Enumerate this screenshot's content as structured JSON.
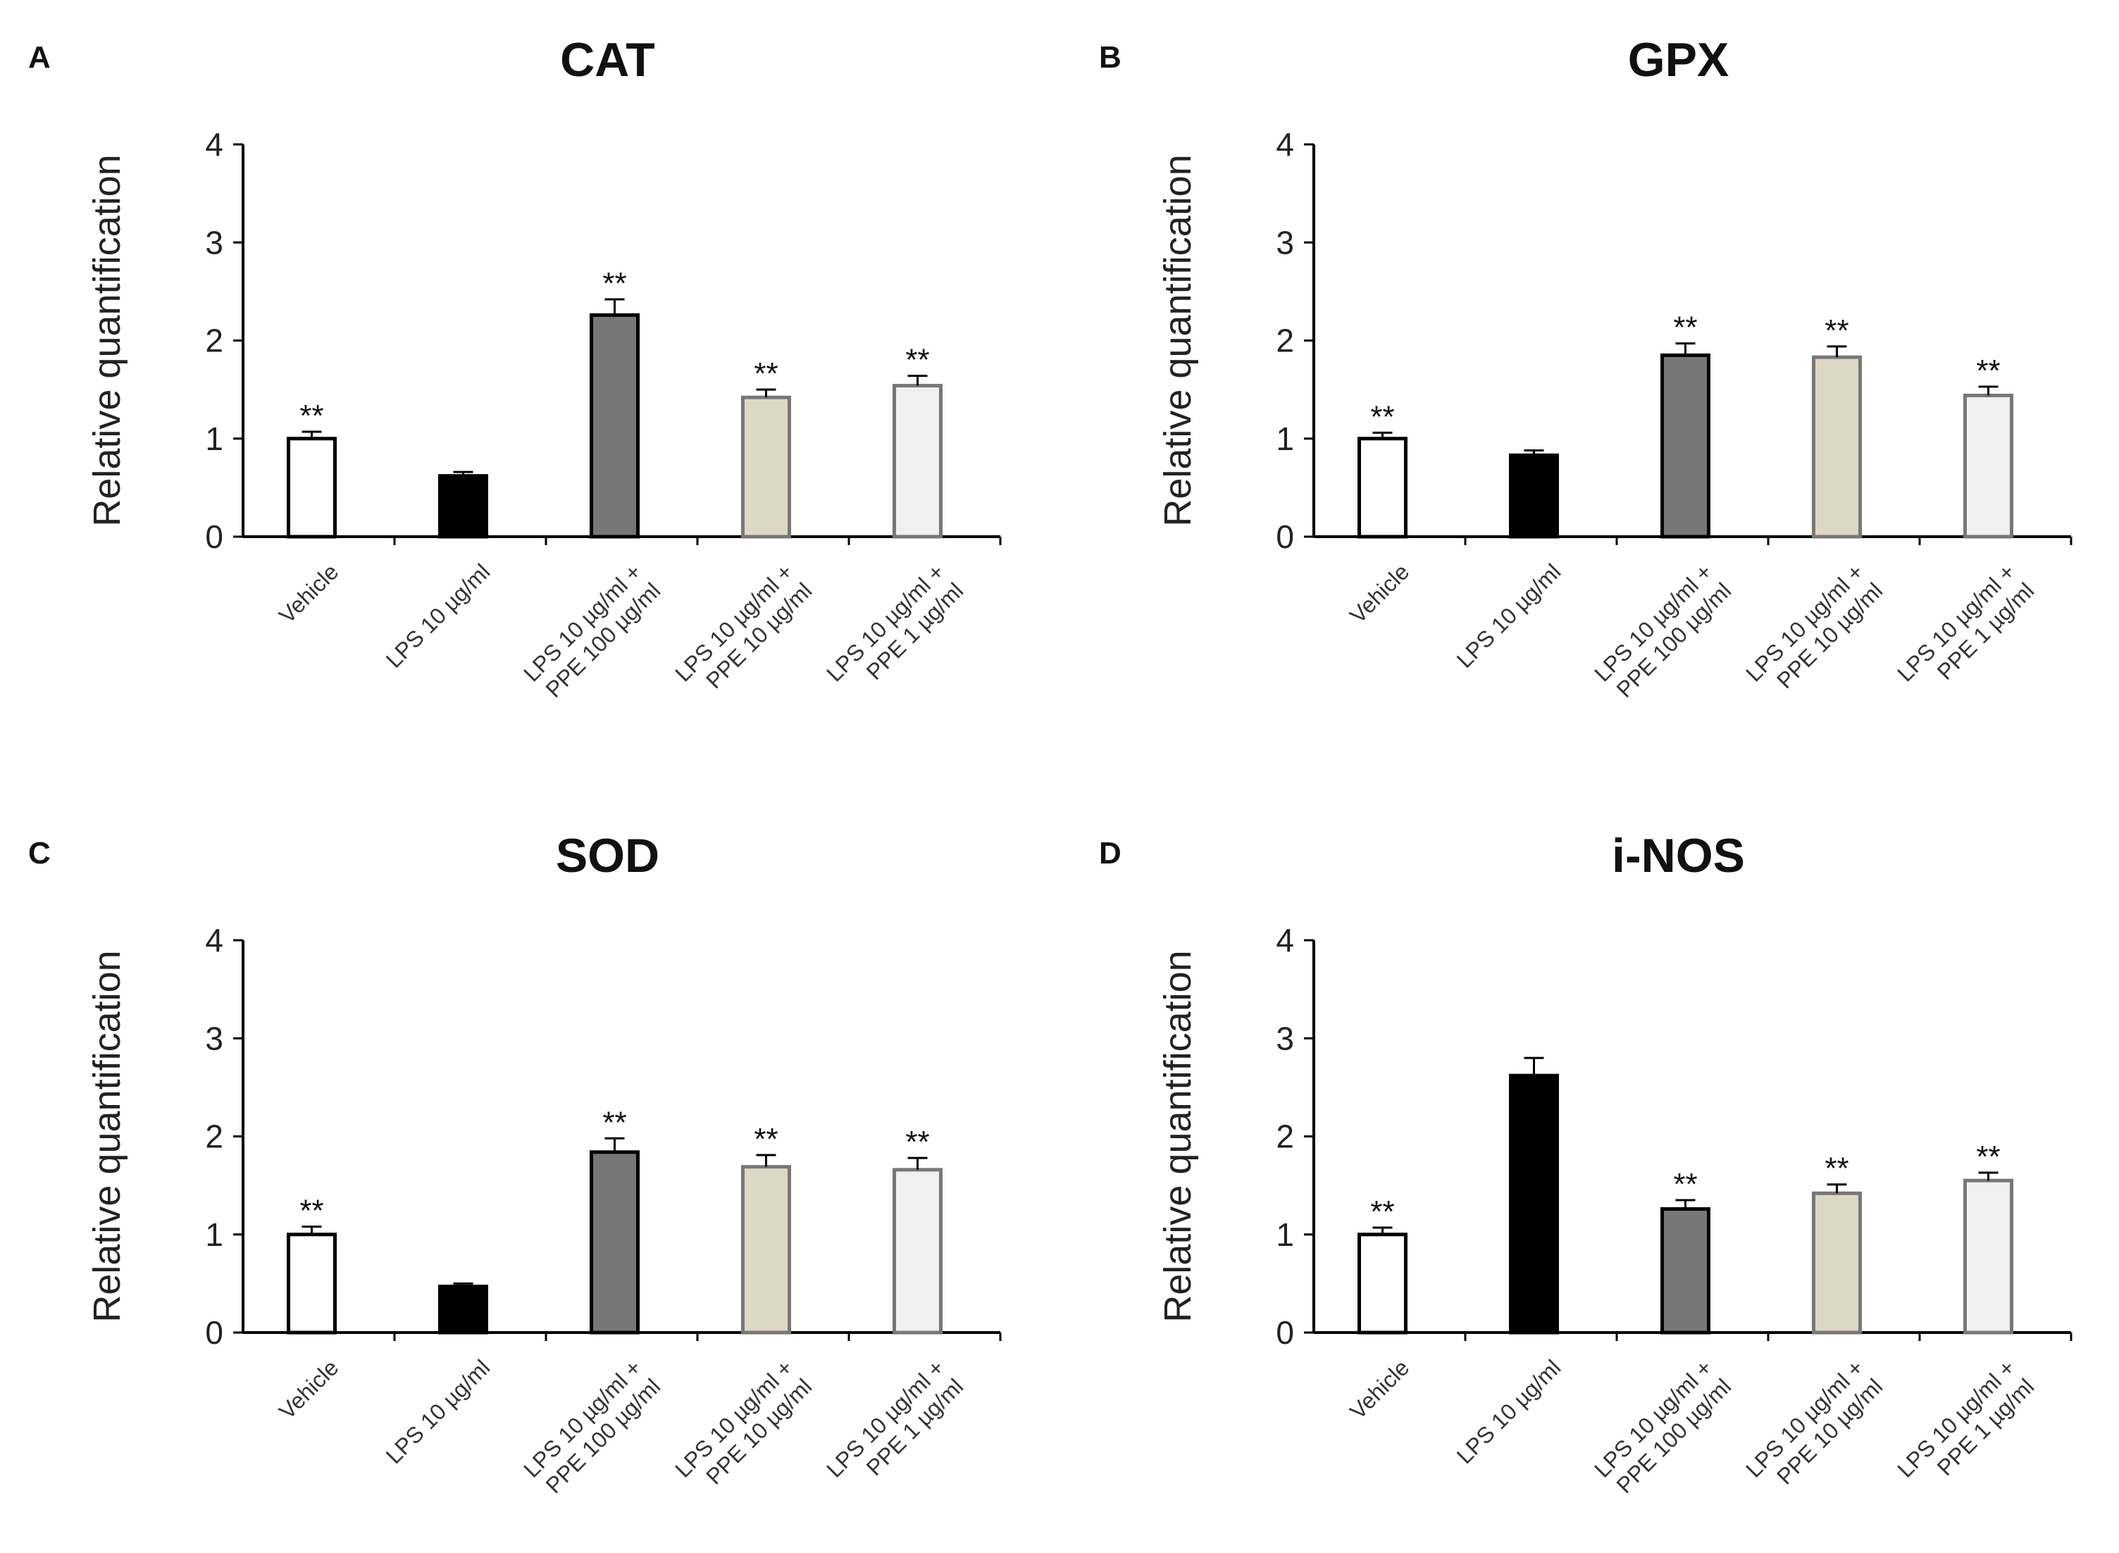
{
  "chart_data": [
    {
      "type": "bar",
      "panel": "A",
      "title": "CAT",
      "ylabel": "Relative quantification",
      "xlabel": "",
      "ylim": [
        0,
        4
      ],
      "yticks": [
        "0",
        "1",
        "2",
        "3",
        "4"
      ],
      "categories": [
        [
          "Vehicle"
        ],
        [
          "LPS 10 µg/ml"
        ],
        [
          "LPS 10 µg/ml +",
          "PPE 100 µg/ml"
        ],
        [
          "LPS 10 µg/ml +",
          "PPE 10 µg/ml"
        ],
        [
          "LPS 10 µg/ml +",
          "PPE 1 µg/ml"
        ]
      ],
      "values": [
        1.0,
        0.62,
        2.26,
        1.42,
        1.54
      ],
      "errors": [
        0.07,
        0.04,
        0.16,
        0.08,
        0.1
      ],
      "significance": [
        "**",
        "",
        "**",
        "**",
        "**"
      ]
    },
    {
      "type": "bar",
      "panel": "B",
      "title": "GPX",
      "ylabel": "Relative quantification",
      "xlabel": "",
      "ylim": [
        0,
        4
      ],
      "yticks": [
        "0",
        "1",
        "2",
        "3",
        "4"
      ],
      "categories": [
        [
          "Vehicle"
        ],
        [
          "LPS 10 µg/ml"
        ],
        [
          "LPS 10 µg/ml +",
          "PPE 100 µg/ml"
        ],
        [
          "LPS 10 µg/ml +",
          "PPE 10 µg/ml"
        ],
        [
          "LPS 10 µg/ml +",
          "PPE 1  µg/ml"
        ]
      ],
      "values": [
        1.0,
        0.83,
        1.85,
        1.83,
        1.44
      ],
      "errors": [
        0.06,
        0.05,
        0.12,
        0.11,
        0.09
      ],
      "significance": [
        "**",
        "",
        "**",
        "**",
        "**"
      ]
    },
    {
      "type": "bar",
      "panel": "C",
      "title": "SOD",
      "ylabel": "Relative quantification",
      "xlabel": "",
      "ylim": [
        0,
        4
      ],
      "yticks": [
        "0",
        "1",
        "2",
        "3",
        "4"
      ],
      "categories": [
        [
          "Vehicle"
        ],
        [
          "LPS 10 µg/ml"
        ],
        [
          "LPS 10 µg/ml +",
          "PPE 100 µg/ml"
        ],
        [
          "LPS 10 µg/ml +",
          "PPE 10 µg/ml"
        ],
        [
          "LPS 10 µg/ml +",
          "PPE 1 µg/ml"
        ]
      ],
      "values": [
        1.0,
        0.47,
        1.84,
        1.69,
        1.66
      ],
      "errors": [
        0.08,
        0.03,
        0.14,
        0.12,
        0.12
      ],
      "significance": [
        "**",
        "",
        "**",
        "**",
        "**"
      ]
    },
    {
      "type": "bar",
      "panel": "D",
      "title": "i-NOS",
      "ylabel": "Relative quantification",
      "xlabel": "",
      "ylim": [
        0,
        4
      ],
      "yticks": [
        "0",
        "1",
        "2",
        "3",
        "4"
      ],
      "categories": [
        [
          "Vehicle"
        ],
        [
          "LPS 10 µg/ml"
        ],
        [
          "LPS 10 µg/ml +",
          "PPE 100 µg/ml"
        ],
        [
          "LPS 10 µg/ml +",
          "PPE 10 µg/ml"
        ],
        [
          "LPS 10 µg/ml +",
          "PPE 1 µg/ml"
        ]
      ],
      "values": [
        1.0,
        2.62,
        1.26,
        1.42,
        1.55
      ],
      "errors": [
        0.07,
        0.18,
        0.09,
        0.09,
        0.08
      ],
      "significance": [
        "**",
        "",
        "**",
        "**",
        "**"
      ]
    }
  ],
  "colors": {
    "bar_fills": [
      "#ffffff",
      "#000000",
      "#777777",
      "#ddd8c4",
      "#f0f0f0"
    ],
    "bar_strokes": [
      "#000000",
      "#000000",
      "#000000",
      "#777777",
      "#777777"
    ],
    "axis": "#000000"
  }
}
